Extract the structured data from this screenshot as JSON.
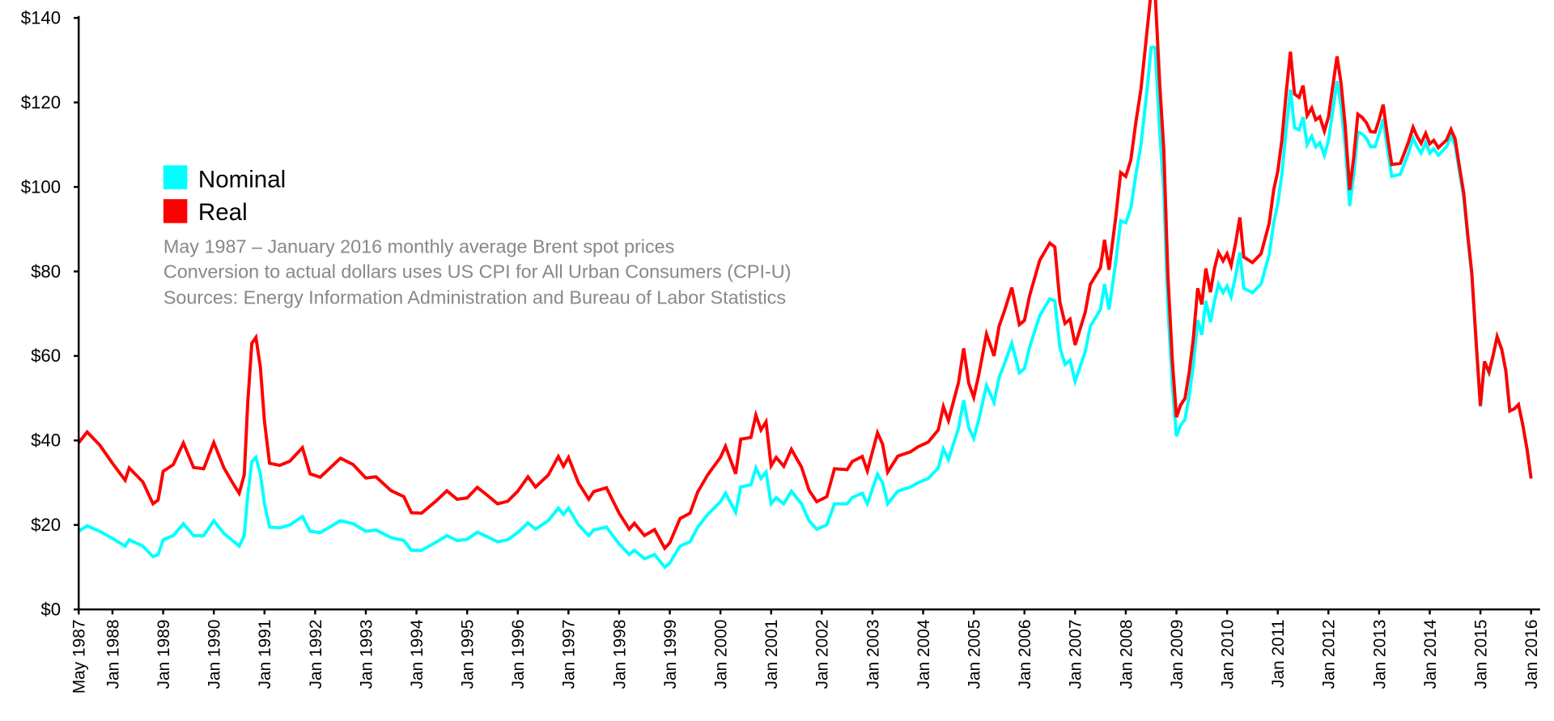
{
  "chart_data": {
    "type": "line",
    "title": "",
    "xlabel": "",
    "ylabel": "",
    "ylim": [
      0,
      140
    ],
    "y_ticks": [
      "$0",
      "$20",
      "$40",
      "$60",
      "$80",
      "$100",
      "$120",
      "$140"
    ],
    "y_tick_values": [
      0,
      20,
      40,
      60,
      80,
      100,
      120,
      140
    ],
    "x_ticks": [
      "May 1987",
      "Jan 1988",
      "Jan 1989",
      "Jan 1990",
      "Jan 1991",
      "Jan 1992",
      "Jan 1993",
      "Jan 1994",
      "Jan 1995",
      "Jan 1996",
      "Jan 1997",
      "Jan 1998",
      "Jan 1999",
      "Jan 2000",
      "Jan 2001",
      "Jan 2002",
      "Jan 2003",
      "Jan 2004",
      "Jan 2005",
      "Jan 2006",
      "Jan 2007",
      "Jan 2008",
      "Jan 2009",
      "Jan 2010",
      "Jan 2011",
      "Jan 2012",
      "Jan 2013",
      "Jan 2014",
      "Jan 2015",
      "Jan 2016"
    ],
    "x_tick_values": [
      1987.333,
      1988,
      1989,
      1990,
      1991,
      1992,
      1993,
      1994,
      1995,
      1996,
      1997,
      1998,
      1999,
      2000,
      2001,
      2002,
      2003,
      2004,
      2005,
      2006,
      2007,
      2008,
      2009,
      2010,
      2011,
      2012,
      2013,
      2014,
      2015,
      2016
    ],
    "xlim": [
      1987.333,
      2016
    ],
    "grid": false,
    "legend": {
      "placement": "top-left",
      "entries": [
        {
          "name": "Nominal",
          "color": "#00ffff"
        },
        {
          "name": "Real",
          "color": "#ff0000"
        }
      ]
    },
    "annotations": [
      "May 1987 – January 2016 monthly average Brent spot prices",
      "Conversion to actual dollars uses US CPI for All Urban Consumers (CPI-U)",
      "Sources: Energy Information Administration and Bureau of Labor Statistics"
    ],
    "x": [
      1987.33,
      1987.5,
      1987.75,
      1988.0,
      1988.25,
      1988.33,
      1988.6,
      1988.8,
      1988.9,
      1989.0,
      1989.2,
      1989.4,
      1989.6,
      1989.8,
      1990.0,
      1990.2,
      1990.4,
      1990.5,
      1990.6,
      1990.67,
      1990.75,
      1990.83,
      1990.92,
      1991.0,
      1991.1,
      1991.3,
      1991.5,
      1991.75,
      1991.9,
      1992.1,
      1992.5,
      1992.75,
      1993.0,
      1993.2,
      1993.5,
      1993.75,
      1993.9,
      1994.1,
      1994.4,
      1994.6,
      1994.8,
      1995.0,
      1995.2,
      1995.4,
      1995.6,
      1995.8,
      1996.0,
      1996.2,
      1996.35,
      1996.6,
      1996.8,
      1996.9,
      1997.0,
      1997.2,
      1997.4,
      1997.5,
      1997.75,
      1998.0,
      1998.2,
      1998.3,
      1998.5,
      1998.7,
      1998.9,
      1999.0,
      1999.2,
      1999.4,
      1999.55,
      1999.75,
      2000.0,
      2000.1,
      2000.3,
      2000.4,
      2000.6,
      2000.7,
      2000.8,
      2000.9,
      2001.0,
      2001.1,
      2001.25,
      2001.4,
      2001.6,
      2001.75,
      2001.9,
      2002.1,
      2002.25,
      2002.5,
      2002.6,
      2002.8,
      2002.9,
      2003.1,
      2003.2,
      2003.3,
      2003.5,
      2003.75,
      2003.9,
      2004.1,
      2004.3,
      2004.4,
      2004.5,
      2004.7,
      2004.8,
      2004.9,
      2005.0,
      2005.1,
      2005.25,
      2005.4,
      2005.5,
      2005.6,
      2005.75,
      2005.9,
      2006.0,
      2006.1,
      2006.3,
      2006.5,
      2006.6,
      2006.7,
      2006.8,
      2006.9,
      2007.0,
      2007.2,
      2007.3,
      2007.5,
      2007.58,
      2007.67,
      2007.8,
      2007.9,
      2008.0,
      2008.1,
      2008.2,
      2008.3,
      2008.42,
      2008.5,
      2008.58,
      2008.67,
      2008.75,
      2008.83,
      2008.92,
      2009.0,
      2009.08,
      2009.17,
      2009.25,
      2009.33,
      2009.42,
      2009.5,
      2009.58,
      2009.67,
      2009.75,
      2009.83,
      2009.92,
      2010.0,
      2010.08,
      2010.17,
      2010.25,
      2010.33,
      2010.5,
      2010.67,
      2010.83,
      2010.92,
      2011.0,
      2011.08,
      2011.17,
      2011.25,
      2011.33,
      2011.42,
      2011.5,
      2011.58,
      2011.67,
      2011.75,
      2011.83,
      2011.92,
      2012.0,
      2012.17,
      2012.25,
      2012.33,
      2012.42,
      2012.5,
      2012.58,
      2012.67,
      2012.75,
      2012.83,
      2012.92,
      2013.0,
      2013.08,
      2013.17,
      2013.25,
      2013.42,
      2013.58,
      2013.67,
      2013.75,
      2013.83,
      2013.92,
      2014.0,
      2014.08,
      2014.17,
      2014.33,
      2014.42,
      2014.5,
      2014.58,
      2014.67,
      2014.75,
      2014.83,
      2014.92,
      2015.0,
      2015.08,
      2015.17,
      2015.25,
      2015.33,
      2015.42,
      2015.5,
      2015.58,
      2015.67,
      2015.75,
      2015.83,
      2015.92,
      2016.0
    ],
    "series": [
      {
        "name": "Nominal",
        "color": "#00ffff",
        "values": [
          18.5,
          19.8,
          18.5,
          16.8,
          15,
          16.5,
          15,
          12.5,
          13,
          16.5,
          17.5,
          20.3,
          17.5,
          17.5,
          21,
          18,
          16,
          15,
          17.5,
          27,
          35,
          36,
          32,
          25,
          19.5,
          19.3,
          20,
          22,
          18.5,
          18.2,
          21,
          20.3,
          18.5,
          18.8,
          17,
          16.3,
          14,
          14,
          16,
          17.5,
          16.3,
          16.6,
          18.3,
          17.2,
          16,
          16.5,
          18.2,
          20.5,
          19,
          21,
          24,
          22.5,
          24,
          20,
          17.5,
          18.8,
          19.5,
          15.5,
          13,
          14,
          12,
          13,
          10,
          11,
          15,
          16,
          19.5,
          22.5,
          25.5,
          27.5,
          23,
          29,
          29.5,
          33.5,
          31,
          32.5,
          25,
          26.5,
          25,
          28,
          25,
          21,
          19,
          20,
          25,
          25,
          26.5,
          27.5,
          25,
          32,
          30,
          25,
          28,
          29,
          30,
          31,
          33.5,
          38,
          35.5,
          43,
          49.5,
          43,
          40.5,
          45,
          53,
          49,
          55,
          58,
          63,
          56,
          57,
          62,
          69.5,
          73.5,
          73,
          62,
          58,
          59,
          54,
          61,
          67,
          71,
          77,
          71,
          82,
          92,
          91.5,
          95,
          103,
          110,
          123,
          133,
          133,
          113,
          99,
          72,
          53,
          41,
          43.5,
          45,
          50.5,
          57.5,
          68.5,
          65,
          73,
          68,
          73,
          77,
          75,
          76.5,
          74,
          79,
          84.5,
          76,
          75,
          77,
          84,
          91.5,
          96,
          103,
          114,
          123,
          114,
          113.5,
          116.5,
          110,
          112,
          109.5,
          110.5,
          107.5,
          111,
          125,
          119,
          110,
          95.5,
          103,
          113,
          112.5,
          111.5,
          109.5,
          109.5,
          112.5,
          116,
          108.5,
          102.5,
          103,
          108,
          111.5,
          109.5,
          108,
          110.5,
          108,
          109,
          107.5,
          109.5,
          112,
          110,
          104,
          97.5,
          88,
          79,
          62,
          48,
          58.5,
          56,
          60,
          64.5,
          61.5,
          56.5,
          47,
          47.5,
          48.5,
          44,
          38,
          31
        ]
      },
      {
        "name": "Real",
        "color": "#ff0000",
        "values": [
          39.4,
          42,
          38.9,
          34.6,
          30.6,
          33.5,
          30.2,
          25,
          25.9,
          32.7,
          34.3,
          39.4,
          33.6,
          33.3,
          39.5,
          33.5,
          29.4,
          27.5,
          31.9,
          48.9,
          63,
          64.4,
          57.3,
          44.5,
          34.6,
          34.1,
          35.1,
          38.3,
          32.1,
          31.3,
          35.8,
          34.3,
          31.1,
          31.4,
          28.1,
          26.7,
          22.9,
          22.8,
          25.8,
          28.1,
          26.1,
          26.4,
          28.9,
          27,
          25,
          25.6,
          28,
          31.4,
          29,
          31.8,
          36.2,
          33.9,
          36,
          29.9,
          26.1,
          27.9,
          28.8,
          22.8,
          19,
          20.4,
          17.5,
          18.9,
          14.5,
          15.8,
          21.5,
          22.8,
          27.8,
          31.9,
          36,
          38.6,
          32.1,
          40.3,
          40.7,
          46,
          42.5,
          44.4,
          34,
          36,
          33.9,
          37.9,
          33.7,
          28.2,
          25.5,
          26.7,
          33.3,
          33.1,
          35,
          36.2,
          32.8,
          41.8,
          39.1,
          32.5,
          36.3,
          37.3,
          38.5,
          39.6,
          42.5,
          48,
          44.7,
          53.8,
          61.8,
          53.5,
          50.2,
          55.6,
          65.2,
          60,
          67.1,
          70.5,
          76.2,
          67.4,
          68.4,
          74.2,
          82.6,
          86.7,
          85.8,
          72.7,
          67.7,
          68.7,
          62.6,
          70.3,
          76.9,
          80.9,
          87.5,
          80.4,
          92.5,
          103.4,
          102.5,
          106.4,
          115.4,
          123.2,
          137,
          146.3,
          146,
          124.3,
          108.9,
          79.6,
          58.8,
          45.5,
          48.3,
          50,
          56,
          63.8,
          76,
          72.2,
          80.7,
          75.1,
          80.7,
          84.5,
          82.5,
          84.2,
          81.4,
          86.9,
          92.8,
          83.4,
          82.1,
          84.2,
          91.4,
          99.3,
          103.7,
          111,
          122.6,
          132,
          122,
          121.2,
          124,
          116.9,
          118.7,
          115.9,
          116.6,
          113.2,
          116.6,
          130.9,
          124.4,
          114.7,
          99.3,
          107.1,
          117.2,
          116.4,
          115.2,
          113.1,
          113,
          115.9,
          119.5,
          111.5,
          105.3,
          105.6,
          110.6,
          114.1,
          111.9,
          110.3,
          112.7,
          110.2,
          111,
          109.3,
          111.1,
          113.6,
          111.4,
          105.2,
          98.5,
          88.7,
          79.6,
          62.4,
          48.2,
          58.7,
          56.2,
          60.2,
          64.6,
          61.6,
          56.6,
          47,
          47.5,
          48.5,
          44,
          38,
          31
        ]
      }
    ]
  }
}
